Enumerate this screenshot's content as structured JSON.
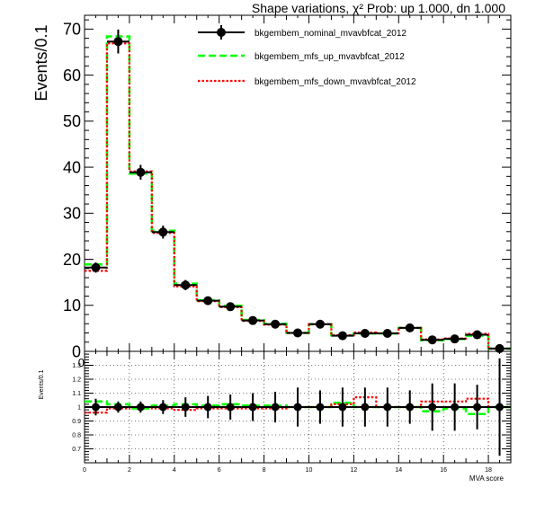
{
  "chart_data": [
    {
      "type": "line",
      "title": "Shape variations,   χ² Prob: up 1.000, dn 1.000",
      "ylabel": "Events/0.1",
      "xlim": [
        0,
        19
      ],
      "ylim": [
        0,
        73
      ],
      "yticks": [
        0,
        10,
        20,
        30,
        40,
        50,
        60,
        70
      ],
      "legend_position": "top-right",
      "bin_edges": [
        0,
        1,
        2,
        3,
        4,
        5,
        6,
        7,
        8,
        9,
        10,
        11,
        12,
        13,
        14,
        15,
        16,
        17,
        18,
        19
      ],
      "series": [
        {
          "name": "bkgembem_nominal_mvavbfcat_2012",
          "style": "points",
          "color": "#000000",
          "values": [
            18.2,
            67.3,
            38.9,
            25.9,
            14.4,
            11.0,
            9.7,
            6.7,
            5.9,
            4.0,
            5.9,
            3.4,
            3.9,
            3.9,
            5.1,
            2.5,
            2.7,
            3.6,
            0.6
          ],
          "errors": [
            1.1,
            2.6,
            1.6,
            1.4,
            1.1,
            0.9,
            0.9,
            0.7,
            0.7,
            0.6,
            0.7,
            0.5,
            0.6,
            0.6,
            0.7,
            0.4,
            0.5,
            0.6,
            0.2
          ]
        },
        {
          "name": "bkgembem_mfs_up_mvavbfcat_2012",
          "style": "dashed",
          "color": "#00ff00",
          "values": [
            18.9,
            68.4,
            38.6,
            26.2,
            14.7,
            11.1,
            9.9,
            6.8,
            6.0,
            4.0,
            5.9,
            3.5,
            3.9,
            3.9,
            5.1,
            2.4,
            2.7,
            3.4,
            0.6
          ]
        },
        {
          "name": "bkgembem_mfs_down_mvavbfcat_2012",
          "style": "dotted",
          "color": "#ff0000",
          "values": [
            17.5,
            66.9,
            39.1,
            25.7,
            14.1,
            10.9,
            9.6,
            6.6,
            5.8,
            4.0,
            5.9,
            3.5,
            4.1,
            3.9,
            5.1,
            2.6,
            2.8,
            3.8,
            0.6
          ]
        }
      ]
    },
    {
      "type": "line",
      "ylabel": "Events/0.1",
      "xlabel": "MVA score",
      "xlim": [
        0,
        19
      ],
      "ylim": [
        0.6,
        1.4
      ],
      "yticks": [
        0.7,
        0.8,
        0.9,
        1,
        1.1,
        1.2,
        1.3
      ],
      "xticks": [
        0,
        2,
        4,
        6,
        8,
        10,
        12,
        14,
        16,
        18
      ],
      "grid": true,
      "bin_edges": [
        0,
        1,
        2,
        3,
        4,
        5,
        6,
        7,
        8,
        9,
        10,
        11,
        12,
        13,
        14,
        15,
        16,
        17,
        18,
        19
      ],
      "series": [
        {
          "name": "bkgembem_nominal_mvavbfcat_2012",
          "style": "points",
          "color": "#000000",
          "values": [
            1,
            1,
            1,
            1,
            1,
            1,
            1,
            1,
            1,
            1,
            1,
            1,
            1,
            1,
            1,
            1,
            1,
            1,
            1
          ],
          "errors": [
            0.06,
            0.04,
            0.04,
            0.05,
            0.07,
            0.08,
            0.09,
            0.1,
            0.11,
            0.14,
            0.12,
            0.14,
            0.14,
            0.14,
            0.12,
            0.17,
            0.17,
            0.16,
            0.35
          ]
        },
        {
          "name": "bkgembem_mfs_up_mvavbfcat_2012",
          "style": "dashed",
          "color": "#00ff00",
          "values": [
            1.04,
            1.02,
            0.99,
            1.01,
            1.02,
            1.01,
            1.02,
            1.01,
            1.01,
            1.0,
            1.0,
            1.03,
            1.0,
            1.0,
            1.0,
            0.97,
            0.99,
            0.95,
            1.0
          ]
        },
        {
          "name": "bkgembem_mfs_down_mvavbfcat_2012",
          "style": "dotted",
          "color": "#ff0000",
          "values": [
            0.96,
            0.99,
            1.0,
            0.99,
            0.98,
            0.99,
            0.99,
            0.99,
            0.99,
            1.0,
            1.0,
            1.02,
            1.07,
            1.0,
            1.0,
            1.04,
            1.04,
            1.06,
            1.0
          ]
        }
      ]
    }
  ],
  "text": {
    "title": "Shape variations,   χ² Prob: up 1.000, dn 1.000",
    "main_ylabel": "Events/0.1",
    "ratio_ylabel": "Events/0.1",
    "xlabel": "MVA score",
    "clipped_label": "0"
  }
}
